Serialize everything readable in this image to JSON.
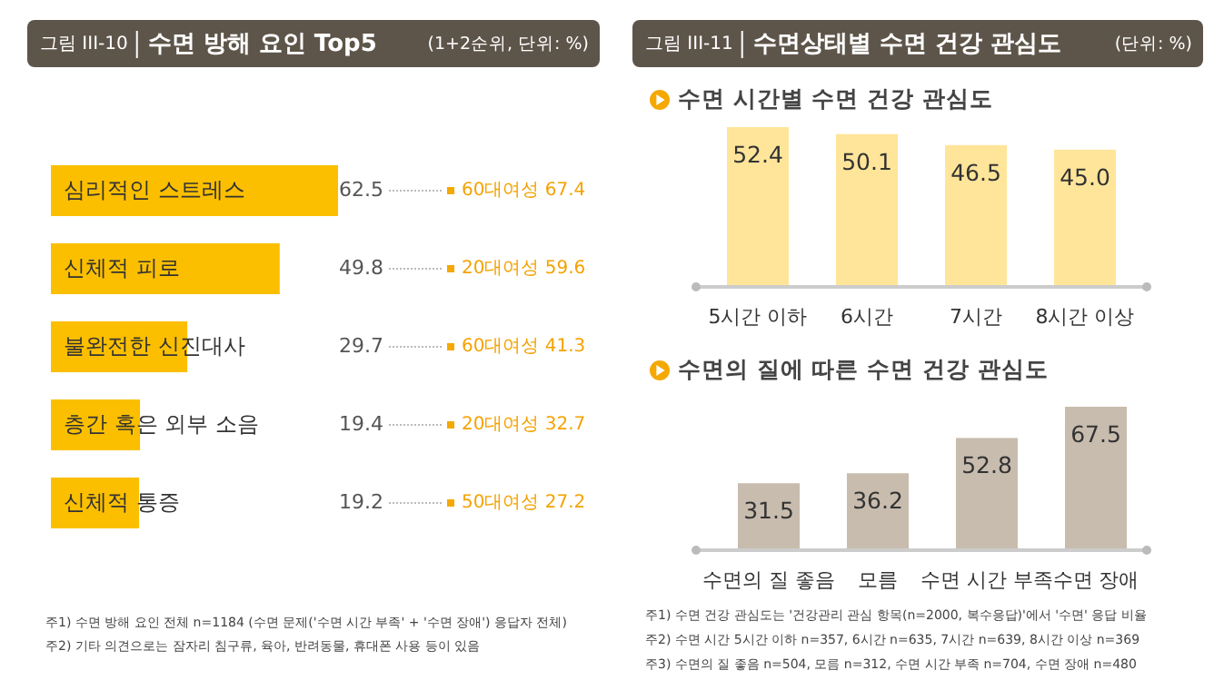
{
  "chart_data": [
    {
      "type": "bar",
      "orientation": "horizontal",
      "title": "수면 방해 요인 Top5",
      "categories": [
        "심리적인 스트레스",
        "신체적 피로",
        "불완전한 신진대사",
        "층간 혹은 외부 소음",
        "신체적 통증"
      ],
      "values": [
        62.5,
        49.8,
        29.7,
        19.4,
        19.2
      ],
      "color": "#fbbf00",
      "data_labels": true,
      "annotations": [
        "그림 III-10",
        "(1+2순위, 단위: %)",
        "60대여성  67.4",
        "20대여성  59.6",
        "60대여성  41.3",
        "20대여성  32.7",
        "50대여성  27.2",
        "주1) 수면 방해 요인 전체 n=1184 (수면 문제('수면 시간 부족' + '수면 장애') 응답자 전체)",
        "주2) 기타 의견으로는 잠자리 침구류, 육아, 반려동물, 휴대폰 사용 등이 있음"
      ]
    },
    {
      "type": "bar",
      "title": "수면 시간별 수면 건강 관심도",
      "categories": [
        "5시간 이하",
        "6시간",
        "7시간",
        "8시간 이상"
      ],
      "values": [
        52.4,
        50.1,
        46.5,
        45.0
      ],
      "color": "#ffe599",
      "value_labels": [
        "52.4",
        "50.1",
        "46.5",
        "45.0"
      ],
      "annotations": [
        "그림 III-11",
        "수면상태별 수면 건강 관심도",
        "(단위: %)"
      ]
    },
    {
      "type": "bar",
      "title": "수면의 질에 따른 수면 건강 관심도",
      "categories": [
        "수면의 질 좋음",
        "모름",
        "수면 시간 부족",
        "수면 장애"
      ],
      "values": [
        31.5,
        36.2,
        52.8,
        67.5
      ],
      "color": "#c8bcae",
      "data_labels": true,
      "annotations": [
        "주1) 수면 건강 관심도는 '건강관리 관심 항목(n=2000, 복수응답)'에서 '수면' 응답 비율",
        "주2) 수면 시간 5시간 이하 n=357, 6시간 n=635, 7시간 n=639, 8시간 이상 n=369",
        "주3) 수면의 질 좋음 n=504, 모름 n=312, 수면 시간 부족 n=704, 수면 장애 n=480"
      ]
    }
  ]
}
